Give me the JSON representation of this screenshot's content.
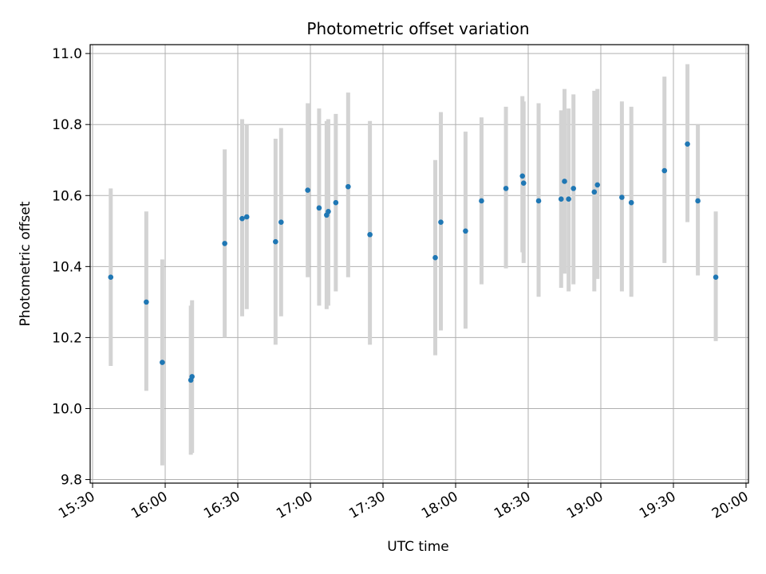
{
  "chart_data": {
    "type": "scatter",
    "title": "Photometric offset variation",
    "xlabel": "UTC time",
    "ylabel": "Photometric offset",
    "grid": true,
    "xlim": [
      "15:29",
      "20:01"
    ],
    "ylim": [
      9.79,
      11.025
    ],
    "x_ticks": [
      "15:30",
      "16:00",
      "16:30",
      "17:00",
      "17:30",
      "18:00",
      "18:30",
      "19:00",
      "19:30",
      "20:00"
    ],
    "y_ticks": [
      "9.8",
      "10.0",
      "10.2",
      "10.4",
      "10.6",
      "10.8",
      "11.0"
    ],
    "marker_color": "#1f77b4",
    "errorbar_color": "#d3d3d3",
    "series": [
      {
        "points": [
          {
            "x": "15:37:30",
            "y": 10.37,
            "err_low": 10.12,
            "err_high": 10.62
          },
          {
            "x": "15:52:12",
            "y": 10.3,
            "err_low": 10.05,
            "err_high": 10.555
          },
          {
            "x": "15:58:48",
            "y": 10.13,
            "err_low": 9.84,
            "err_high": 10.42
          },
          {
            "x": "16:10:36",
            "y": 10.08,
            "err_low": 9.87,
            "err_high": 10.29
          },
          {
            "x": "16:11:06",
            "y": 10.09,
            "err_low": 9.875,
            "err_high": 10.305
          },
          {
            "x": "16:24:36",
            "y": 10.465,
            "err_low": 10.2,
            "err_high": 10.73
          },
          {
            "x": "16:31:48",
            "y": 10.535,
            "err_low": 10.26,
            "err_high": 10.815
          },
          {
            "x": "16:33:42",
            "y": 10.54,
            "err_low": 10.28,
            "err_high": 10.8
          },
          {
            "x": "16:45:36",
            "y": 10.47,
            "err_low": 10.18,
            "err_high": 10.76
          },
          {
            "x": "16:47:54",
            "y": 10.525,
            "err_low": 10.26,
            "err_high": 10.79
          },
          {
            "x": "16:58:54",
            "y": 10.615,
            "err_low": 10.37,
            "err_high": 10.86
          },
          {
            "x": "17:03:36",
            "y": 10.565,
            "err_low": 10.29,
            "err_high": 10.845
          },
          {
            "x": "17:06:42",
            "y": 10.545,
            "err_low": 10.28,
            "err_high": 10.81
          },
          {
            "x": "17:07:24",
            "y": 10.555,
            "err_low": 10.29,
            "err_high": 10.815
          },
          {
            "x": "17:10:30",
            "y": 10.58,
            "err_low": 10.33,
            "err_high": 10.83
          },
          {
            "x": "17:15:36",
            "y": 10.625,
            "err_low": 10.37,
            "err_high": 10.89
          },
          {
            "x": "17:24:36",
            "y": 10.49,
            "err_low": 10.18,
            "err_high": 10.81
          },
          {
            "x": "17:51:36",
            "y": 10.425,
            "err_low": 10.15,
            "err_high": 10.7
          },
          {
            "x": "17:53:54",
            "y": 10.525,
            "err_low": 10.22,
            "err_high": 10.835
          },
          {
            "x": "18:04:06",
            "y": 10.5,
            "err_low": 10.225,
            "err_high": 10.78
          },
          {
            "x": "18:10:42",
            "y": 10.585,
            "err_low": 10.35,
            "err_high": 10.82
          },
          {
            "x": "18:20:48",
            "y": 10.62,
            "err_low": 10.395,
            "err_high": 10.85
          },
          {
            "x": "18:27:36",
            "y": 10.655,
            "err_low": 10.44,
            "err_high": 10.88
          },
          {
            "x": "18:28:06",
            "y": 10.635,
            "err_low": 10.41,
            "err_high": 10.865
          },
          {
            "x": "18:34:18",
            "y": 10.585,
            "err_low": 10.315,
            "err_high": 10.86
          },
          {
            "x": "18:43:36",
            "y": 10.59,
            "err_low": 10.34,
            "err_high": 10.84
          },
          {
            "x": "18:45:00",
            "y": 10.64,
            "err_low": 10.38,
            "err_high": 10.9
          },
          {
            "x": "18:46:42",
            "y": 10.59,
            "err_low": 10.33,
            "err_high": 10.845
          },
          {
            "x": "18:48:42",
            "y": 10.62,
            "err_low": 10.35,
            "err_high": 10.885
          },
          {
            "x": "18:57:18",
            "y": 10.61,
            "err_low": 10.33,
            "err_high": 10.895
          },
          {
            "x": "18:58:36",
            "y": 10.63,
            "err_low": 10.365,
            "err_high": 10.9
          },
          {
            "x": "19:08:42",
            "y": 10.595,
            "err_low": 10.33,
            "err_high": 10.865
          },
          {
            "x": "19:12:36",
            "y": 10.58,
            "err_low": 10.315,
            "err_high": 10.85
          },
          {
            "x": "19:26:18",
            "y": 10.67,
            "err_low": 10.41,
            "err_high": 10.935
          },
          {
            "x": "19:35:48",
            "y": 10.745,
            "err_low": 10.525,
            "err_high": 10.97
          },
          {
            "x": "19:40:06",
            "y": 10.585,
            "err_low": 10.375,
            "err_high": 10.8
          },
          {
            "x": "19:47:30",
            "y": 10.37,
            "err_low": 10.19,
            "err_high": 10.555
          }
        ]
      }
    ]
  }
}
